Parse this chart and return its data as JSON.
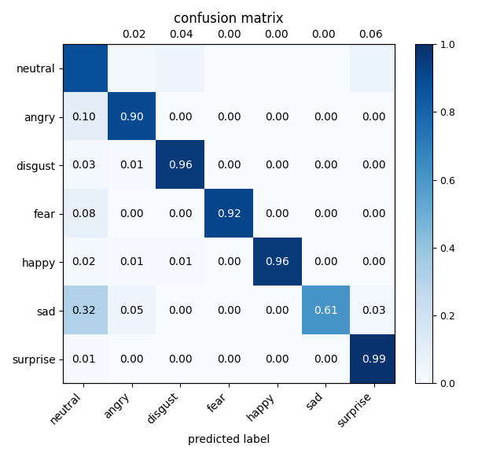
{
  "title": "confusion matrix",
  "xlabel": "predicted label",
  "classes": [
    "neutral",
    "angry",
    "disgust",
    "fear",
    "happy",
    "sad",
    "surprise"
  ],
  "matrix": [
    [
      0.88,
      0.02,
      0.04,
      0.0,
      0.0,
      0.0,
      0.06
    ],
    [
      0.1,
      0.9,
      0.0,
      0.0,
      0.0,
      0.0,
      0.0
    ],
    [
      0.03,
      0.01,
      0.96,
      0.0,
      0.0,
      0.0,
      0.0
    ],
    [
      0.08,
      0.0,
      0.0,
      0.92,
      0.0,
      0.0,
      0.0
    ],
    [
      0.02,
      0.01,
      0.01,
      0.0,
      0.96,
      0.0,
      0.0
    ],
    [
      0.32,
      0.05,
      0.0,
      0.0,
      0.0,
      0.61,
      0.03
    ],
    [
      0.01,
      0.0,
      0.0,
      0.0,
      0.0,
      0.0,
      0.99
    ]
  ],
  "top_labels": [
    "",
    "0.02",
    "0.04",
    "0.00",
    "0.00",
    "0.00",
    "0.06"
  ],
  "cmap": "Blues",
  "vmin": 0.0,
  "vmax": 1.0,
  "text_threshold": 0.5,
  "white_text_color": "white",
  "black_text_color": "black",
  "fontsize_cell": 10,
  "fontsize_labels": 10,
  "fontsize_title": 12
}
